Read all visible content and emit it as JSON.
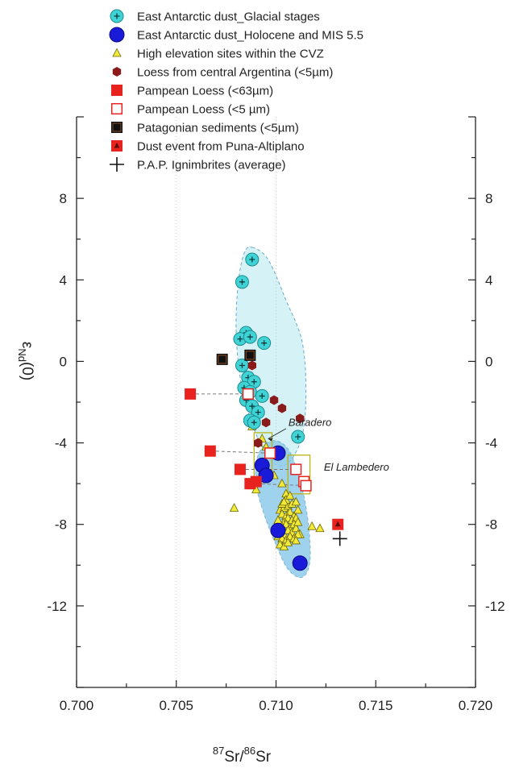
{
  "chart_data": {
    "type": "scatter",
    "title": "",
    "xlabel": {
      "sup1": "87",
      "base1": "Sr/",
      "sup2": "86",
      "base2": "Sr"
    },
    "ylabel": {
      "greek": "ε",
      "sub": "Nd",
      "tail": "(0)"
    },
    "xlim": [
      0.7,
      0.72
    ],
    "ylim": [
      -16,
      12
    ],
    "xticks": [
      "0.700",
      "0.705",
      "0.710",
      "0.715",
      "0.720"
    ],
    "yticks": [
      "8",
      "4",
      "0",
      "-4",
      "-8",
      "-12"
    ],
    "ytick_values": [
      8,
      4,
      0,
      -4,
      -8,
      -12
    ],
    "xtick_values": [
      0.7,
      0.705,
      0.71,
      0.715,
      0.72
    ],
    "grid": false,
    "legend_placement": "top-left",
    "colors": {
      "cyan": "#3fd3d6",
      "blue": "#1a1ad9",
      "yellow": "#f2ea3a",
      "darkred": "#8b1a1a",
      "red": "#e8231f",
      "black": "#111111",
      "glacial_field": "#d5f3f6",
      "holocene_field": "#8fcbe9",
      "box": "#b9b21a"
    },
    "legend": [
      {
        "key": "glacial",
        "label": "East Antarctic dust_Glacial stages"
      },
      {
        "key": "holocene",
        "label": "East Antarctic dust_Holocene and MIS 5.5"
      },
      {
        "key": "cvz",
        "label": "High elevation sites within the CVZ"
      },
      {
        "key": "loess_arg",
        "label": "Loess from central Argentina (<5µm)"
      },
      {
        "key": "pampean63",
        "label": "Pampean Loess (<63µm)"
      },
      {
        "key": "pampean5",
        "label": "Pampean Loess (<5 µm)"
      },
      {
        "key": "patagonian",
        "label": "Patagonian sediments (<5µm)"
      },
      {
        "key": "dust_event",
        "label": "Dust event from Puna-Altiplano"
      },
      {
        "key": "ignimbrite",
        "label": "P.A.P. Ignimbrites (average)"
      }
    ],
    "annotations": [
      {
        "text": "Baradero",
        "x": 0.7103,
        "y": -3.0
      },
      {
        "text": "El Lambedero",
        "x": 0.7124,
        "y": -5.2
      }
    ],
    "series": [
      {
        "key": "glacial",
        "name": "East Antarctic dust_Glacial stages",
        "x": [
          0.7088,
          0.7083,
          0.7085,
          0.7082,
          0.7087,
          0.7094,
          0.7083,
          0.7086,
          0.7089,
          0.7084,
          0.7087,
          0.7093,
          0.7085,
          0.7088,
          0.7091,
          0.7087,
          0.7089,
          0.7111
        ],
        "y": [
          5.0,
          3.9,
          1.4,
          1.1,
          1.2,
          0.9,
          -0.2,
          -0.8,
          -1.0,
          -1.3,
          -1.5,
          -1.7,
          -1.9,
          -2.2,
          -2.5,
          -2.9,
          -3.0,
          -3.7
        ]
      },
      {
        "key": "holocene",
        "name": "East Antarctic dust_Holocene and MIS 5.5",
        "x": [
          0.7101,
          0.7093,
          0.7095,
          0.7101,
          0.7112
        ],
        "y": [
          -4.5,
          -5.1,
          -5.6,
          -8.3,
          -9.9
        ]
      },
      {
        "key": "cvz",
        "name": "High elevation sites within the CVZ",
        "x": [
          0.7088,
          0.7091,
          0.7093,
          0.7095,
          0.7099,
          0.7103,
          0.7087,
          0.709,
          0.7105,
          0.7079,
          0.7102,
          0.7104,
          0.7106,
          0.7108,
          0.711,
          0.7103,
          0.7105,
          0.7107,
          0.7109,
          0.7111,
          0.7101,
          0.7104,
          0.7106,
          0.7108,
          0.711,
          0.7103,
          0.7105,
          0.7107,
          0.7109,
          0.71,
          0.7102,
          0.7104,
          0.7106,
          0.7108,
          0.711,
          0.7112,
          0.7101,
          0.7103,
          0.7105,
          0.7107,
          0.7109,
          0.7111,
          0.7102,
          0.7104,
          0.7106,
          0.7103,
          0.7105,
          0.7107,
          0.7111,
          0.7118,
          0.7122,
          0.7104,
          0.711
        ],
        "y": [
          -3.2,
          -4.0,
          -3.8,
          -4.2,
          -5.6,
          -6.0,
          -6.1,
          -6.3,
          -6.5,
          -7.2,
          -7.3,
          -7.2,
          -7.1,
          -7.0,
          -6.9,
          -7.5,
          -7.6,
          -7.4,
          -7.6,
          -7.3,
          -7.8,
          -7.9,
          -7.7,
          -7.8,
          -7.7,
          -8.1,
          -8.0,
          -8.2,
          -8.0,
          -8.3,
          -8.4,
          -8.5,
          -8.3,
          -8.4,
          -8.2,
          -8.5,
          -8.6,
          -8.7,
          -8.8,
          -8.6,
          -8.7,
          -8.5,
          -9.0,
          -9.1,
          -8.9,
          -7.0,
          -6.8,
          -6.6,
          -7.9,
          -8.1,
          -8.2,
          -6.9,
          -8.8
        ]
      },
      {
        "key": "loess_arg",
        "name": "Loess from central Argentina (<5µm)",
        "x": [
          0.7088,
          0.7099,
          0.7103,
          0.7095,
          0.7112,
          0.7091
        ],
        "y": [
          -0.2,
          -1.9,
          -2.3,
          -3.0,
          -2.8,
          -4.0
        ]
      },
      {
        "key": "pampean63",
        "name": "Pampean Loess (<63µm)",
        "x": [
          0.7057,
          0.7067,
          0.7082,
          0.7087,
          0.709
        ],
        "y": [
          -1.6,
          -4.4,
          -5.3,
          -6.0,
          -5.9
        ]
      },
      {
        "key": "pampean5",
        "name": "Pampean Loess (<5 µm)",
        "x": [
          0.7086,
          0.7097,
          0.711,
          0.7114,
          0.7115
        ],
        "y": [
          -1.6,
          -4.5,
          -5.3,
          -5.9,
          -6.1
        ]
      },
      {
        "key": "patagonian",
        "name": "Patagonian sediments (<5µm)",
        "x": [
          0.7073,
          0.7087
        ],
        "y": [
          0.1,
          0.3
        ]
      },
      {
        "key": "dust_event",
        "name": "Dust event from Puna-Altiplano",
        "x": [
          0.7131
        ],
        "y": [
          -8.0
        ]
      },
      {
        "key": "ignimbrite",
        "name": "P.A.P. Ignimbrites (average)",
        "x": [
          0.7132
        ],
        "y": [
          -8.7
        ]
      }
    ],
    "fields": [
      {
        "key": "glacial_field",
        "outline": [
          [
            0.7088,
            5.6
          ],
          [
            0.7096,
            5.0
          ],
          [
            0.7105,
            3.0
          ],
          [
            0.7113,
            1.0
          ],
          [
            0.7115,
            -1.5
          ],
          [
            0.7113,
            -3.7
          ],
          [
            0.7106,
            -5.0
          ],
          [
            0.7099,
            -5.0
          ],
          [
            0.7092,
            -4.0
          ],
          [
            0.7086,
            -2.5
          ],
          [
            0.7082,
            -0.8
          ],
          [
            0.708,
            1.5
          ],
          [
            0.7081,
            3.8
          ],
          [
            0.7084,
            5.3
          ]
        ]
      },
      {
        "key": "holocene_field",
        "outline": [
          [
            0.7098,
            -3.9
          ],
          [
            0.7106,
            -4.3
          ],
          [
            0.7112,
            -5.8
          ],
          [
            0.7116,
            -7.8
          ],
          [
            0.7117,
            -9.8
          ],
          [
            0.7113,
            -10.6
          ],
          [
            0.7106,
            -10.2
          ],
          [
            0.71,
            -9.0
          ],
          [
            0.7094,
            -7.5
          ],
          [
            0.709,
            -6.0
          ],
          [
            0.7091,
            -4.6
          ]
        ]
      }
    ],
    "boxes": [
      {
        "x": [
          0.7089,
          0.7098
        ],
        "y": [
          -5.7,
          -3.5
        ]
      },
      {
        "x": [
          0.7106,
          0.7117
        ],
        "y": [
          -6.5,
          -4.6
        ]
      }
    ],
    "connectors": [
      {
        "x": [
          0.7057,
          0.7086
        ],
        "y": [
          -1.6,
          -1.6
        ]
      },
      {
        "x": [
          0.7067,
          0.7097
        ],
        "y": [
          -4.4,
          -4.5
        ]
      },
      {
        "x": [
          0.709,
          0.7115
        ],
        "y": [
          -6.0,
          -6.1
        ]
      },
      {
        "x": [
          0.7082,
          0.711
        ],
        "y": [
          -5.3,
          -5.3
        ]
      }
    ]
  }
}
